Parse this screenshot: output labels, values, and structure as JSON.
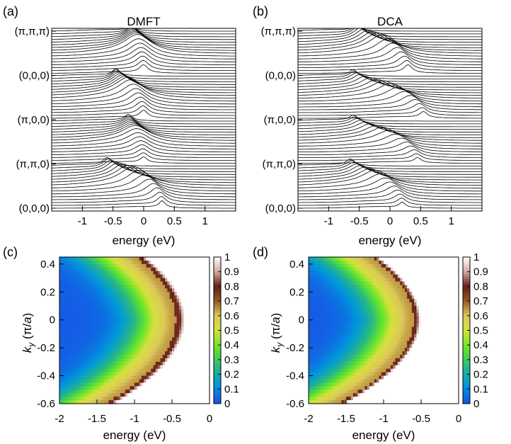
{
  "chart_data": [
    {
      "panel": "(a)",
      "type": "line",
      "title": "DMFT",
      "xlabel": "energy (eV)",
      "x_ticks": [
        "-1",
        "-0.5",
        "0",
        "0.5",
        "1"
      ],
      "x_tick_values": [
        -1,
        -0.5,
        0,
        0.5,
        1
      ],
      "xlim": [
        -1.5,
        1.5
      ],
      "k_path_labels": [
        "(π,π,π)",
        "(0,0,0)",
        "(π,0,0)",
        "(π,π,0)",
        "(0,0,0)"
      ],
      "n_curves": 64,
      "band_min_energy": [
        -0.2,
        -0.45,
        -0.25,
        -0.6
      ],
      "band_max_energy": [
        0.0,
        0.0,
        0.0,
        0.3
      ],
      "peak_height": [
        1.0,
        1.0,
        0.8,
        1.0
      ]
    },
    {
      "panel": "(b)",
      "type": "line",
      "title": "DCA",
      "xlabel": "energy (eV)",
      "x_ticks": [
        "-1",
        "-0.5",
        "0",
        "0.5",
        "1"
      ],
      "x_tick_values": [
        -1,
        -0.5,
        0,
        0.5,
        1
      ],
      "xlim": [
        -1.5,
        1.5
      ],
      "k_path_labels": [
        "(π,π,π)",
        "(0,0,0)",
        "(π,0,0)",
        "(π,π,0)",
        "(0,0,0)"
      ],
      "n_curves": 64,
      "band_min_energy": [
        -0.55,
        -0.6,
        -0.6,
        -0.65
      ],
      "band_max_energy": [
        0.3,
        0.55,
        0.45,
        0.2
      ],
      "peak_height": [
        1.0,
        0.8,
        0.7,
        0.8
      ]
    },
    {
      "panel": "(c)",
      "type": "heatmap",
      "xlabel": "energy (eV)",
      "ylabel": "k_y (π/a)",
      "xlim": [
        -2,
        0
      ],
      "ylim": [
        -0.6,
        0.45
      ],
      "x_ticks": [
        "-2",
        "-1.5",
        "-1",
        "-0.5",
        "0"
      ],
      "x_tick_values": [
        -2,
        -1.5,
        -1,
        -0.5,
        0
      ],
      "y_ticks": [
        "0.4",
        "0.2",
        "0",
        "-0.2",
        "-0.4",
        "-0.6"
      ],
      "y_tick_values": [
        0.4,
        0.2,
        0,
        -0.2,
        -0.4,
        -0.6
      ],
      "colorbar_ticks": [
        "1",
        "0.9",
        "0.8",
        "0.7",
        "0.6",
        "0.5",
        "0.4",
        "0.3",
        "0.2",
        "0.1",
        "0"
      ],
      "colorbar_tick_values": [
        1,
        0.9,
        0.8,
        0.7,
        0.6,
        0.5,
        0.4,
        0.3,
        0.2,
        0.1,
        0
      ],
      "ridge_energy_at_ky0": -0.45,
      "ridge_curvature": 2.6,
      "ridge_width": 0.12
    },
    {
      "panel": "(d)",
      "type": "heatmap",
      "xlabel": "energy (eV)",
      "ylabel": "k_y (π/a)",
      "xlim": [
        -2,
        0
      ],
      "ylim": [
        -0.6,
        0.45
      ],
      "x_ticks": [
        "-2",
        "-1.5",
        "-1",
        "-0.5",
        "0"
      ],
      "x_tick_values": [
        -2,
        -1.5,
        -1,
        -0.5,
        0
      ],
      "y_ticks": [
        "0.4",
        "0.2",
        "0",
        "-0.2",
        "-0.4",
        "-0.6"
      ],
      "y_tick_values": [
        0.4,
        0.2,
        0,
        -0.2,
        -0.4,
        -0.6
      ],
      "colorbar_ticks": [
        "1",
        "0.9",
        "0.8",
        "0.7",
        "0.6",
        "0.5",
        "0.4",
        "0.3",
        "0.2",
        "0.1",
        "0"
      ],
      "colorbar_tick_values": [
        1,
        0.9,
        0.8,
        0.7,
        0.6,
        0.5,
        0.4,
        0.3,
        0.2,
        0.1,
        0
      ],
      "ridge_energy_at_ky0": -0.6,
      "ridge_curvature": 2.8,
      "ridge_width": 0.09
    }
  ]
}
